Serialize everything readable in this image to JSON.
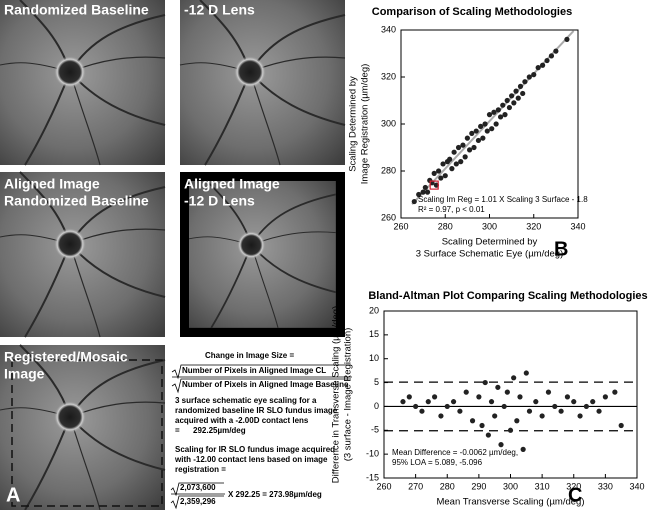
{
  "panel_a": {
    "labels": [
      [
        "Randomized Baseline"
      ],
      [
        "-12 D Lens"
      ],
      [
        "Aligned Image",
        "Randomized Baseline"
      ],
      [
        "Aligned Image",
        "-12 D Lens"
      ],
      [
        "Registered/Mosaic",
        "Image"
      ]
    ],
    "letter": "A"
  },
  "text_block": {
    "heading": "Change in Image Size =",
    "numerator": "Number of Pixels in Aligned Image CL",
    "denominator": "Number of Pixels in Aligned Image Baseline",
    "para1": [
      "3 surface schematic eye scaling for a",
      "randomized baseline IR SLO fundus image",
      "acquired with a -2.00D contact lens",
      "=      292.25µm/deg"
    ],
    "para2": [
      "Scaling for IR SLO fundus image acquired",
      "with -12.00 contact lens based on image",
      "registration ="
    ],
    "num2": "2,073,600",
    "den2": "2,359,296",
    "result": "X 292.25 = 273.98µm/deg"
  },
  "chart_data": [
    {
      "type": "scatter",
      "title": "Comparison of Scaling Methodologies",
      "xlabel": [
        "Scaling Determined by",
        "3 Surface Schematic Eye (µm/deg)"
      ],
      "ylabel": [
        "Scaling Determined by",
        "Image Registration (µm/deg)"
      ],
      "annotation": [
        "Scaling Im Reg = 1.01 X Scaling 3 Surface - 1.8",
        "R² = 0.97, p < 0.01"
      ],
      "letter": "B",
      "xlim": [
        260,
        340
      ],
      "ylim": [
        260,
        340
      ],
      "xticks": [
        260,
        280,
        300,
        320,
        340
      ],
      "yticks": [
        260,
        280,
        300,
        320,
        340
      ],
      "color": "#222222",
      "fit_line": {
        "x": [
          265,
          338
        ],
        "y": [
          265.85,
          339.58
        ],
        "color": "#aaaaaa"
      },
      "highlight": {
        "x": 275,
        "y": 274,
        "color": "#d02030"
      },
      "x": [
        266,
        268,
        270,
        271,
        272,
        273,
        274,
        275,
        276,
        277,
        278,
        279,
        280,
        281,
        282,
        283,
        284,
        285,
        286,
        287,
        288,
        289,
        290,
        291,
        292,
        293,
        294,
        295,
        296,
        297,
        298,
        299,
        300,
        301,
        302,
        303,
        304,
        305,
        306,
        307,
        308,
        309,
        310,
        311,
        312,
        313,
        314,
        315,
        316,
        318,
        320,
        322,
        324,
        326,
        328,
        330,
        335
      ],
      "values": [
        267,
        270,
        271,
        273,
        271,
        276,
        275,
        279,
        274,
        280,
        277,
        283,
        278,
        284,
        285,
        281,
        288,
        283,
        290,
        284,
        291,
        286,
        294,
        289,
        296,
        290,
        297,
        293,
        299,
        294,
        300,
        297,
        304,
        298,
        305,
        300,
        306,
        303,
        308,
        304,
        310,
        307,
        312,
        309,
        314,
        311,
        316,
        313,
        318,
        320,
        321,
        324,
        325,
        327,
        329,
        331,
        336
      ]
    },
    {
      "type": "scatter",
      "title": "Bland-Altman Plot Comparing Scaling Methodologies",
      "xlabel": [
        "Mean Transverse Scaling (µm/deg)"
      ],
      "ylabel": [
        "Difference in Transverse Scaling (µm/deg)",
        "(3 surface - Image Registration)"
      ],
      "annotation": [
        "Mean Difference = -0.0062 µm/deg,",
        "95% LOA = 5.089, -5.096"
      ],
      "letter": "C",
      "xlim": [
        260,
        340
      ],
      "ylim": [
        -15,
        20
      ],
      "xticks": [
        260,
        270,
        280,
        290,
        300,
        310,
        320,
        330,
        340
      ],
      "yticks": [
        -15,
        -10,
        -5,
        0,
        5,
        10,
        15,
        20
      ],
      "color": "#222222",
      "mean_line": -0.0062,
      "loa": [
        5.089,
        -5.096
      ],
      "x": [
        266,
        268,
        270,
        272,
        274,
        276,
        278,
        280,
        282,
        284,
        286,
        288,
        290,
        291,
        292,
        293,
        294,
        295,
        296,
        297,
        298,
        299,
        300,
        301,
        302,
        303,
        304,
        305,
        306,
        308,
        310,
        312,
        314,
        316,
        318,
        320,
        322,
        324,
        326,
        328,
        330,
        333,
        335
      ],
      "values": [
        1,
        2,
        0,
        -1,
        1,
        2,
        -2,
        0,
        1,
        -1,
        3,
        -3,
        2,
        -4,
        5,
        -6,
        1,
        -2,
        4,
        -8,
        0,
        3,
        -5,
        6,
        -3,
        2,
        -9,
        7,
        -1,
        1,
        -2,
        3,
        0,
        -1,
        2,
        1,
        -2,
        0,
        1,
        -1,
        2,
        3,
        -4
      ]
    }
  ]
}
